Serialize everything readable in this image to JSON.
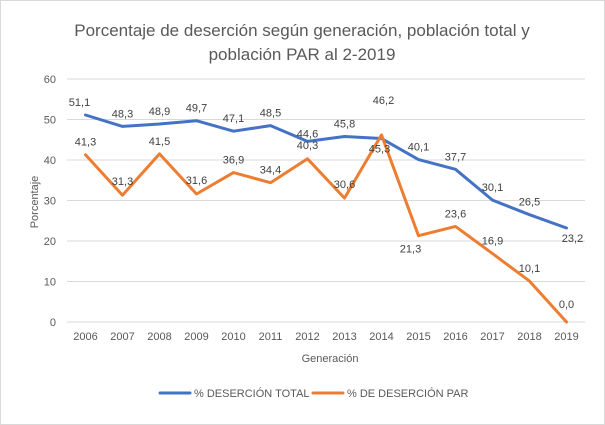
{
  "chart_data": {
    "type": "line",
    "title_line1": "Porcentaje de deserción según generación, población total y",
    "title_line2": "población PAR al 2-2019",
    "xlabel": "Generación",
    "ylabel": "Porcentaje",
    "ylim": [
      0,
      60
    ],
    "yticks": [
      0,
      10,
      20,
      30,
      40,
      50,
      60
    ],
    "grid": true,
    "legend_position": "bottom",
    "categories": [
      "2006",
      "2007",
      "2008",
      "2009",
      "2010",
      "2011",
      "2012",
      "2013",
      "2014",
      "2015",
      "2016",
      "2017",
      "2018",
      "2019"
    ],
    "series": [
      {
        "name": "% DESERCIÓN TOTAL",
        "color": "#4472c4",
        "values": [
          51.1,
          48.3,
          48.9,
          49.7,
          47.1,
          48.5,
          44.6,
          45.8,
          45.3,
          40.1,
          37.7,
          30.1,
          26.5,
          23.2
        ],
        "labels": [
          "51,1",
          "48,3",
          "48,9",
          "49,7",
          "47,1",
          "48,5",
          "44,6",
          "45,8",
          "45,3",
          "40,1",
          "37,7",
          "30,1",
          "26,5",
          "23,2"
        ]
      },
      {
        "name": "% DE DESERCIÓN PAR",
        "color": "#ed7d31",
        "values": [
          41.3,
          31.3,
          41.5,
          31.6,
          36.9,
          34.4,
          40.3,
          30.6,
          46.2,
          21.3,
          23.6,
          16.9,
          10.1,
          0.0
        ],
        "labels": [
          "41,3",
          "31,3",
          "41,5",
          "31,6",
          "36,9",
          "34,4",
          "40,3",
          "30,6",
          "46,2",
          "21,3",
          "23,6",
          "16,9",
          "10,1",
          "0,0"
        ]
      }
    ]
  }
}
